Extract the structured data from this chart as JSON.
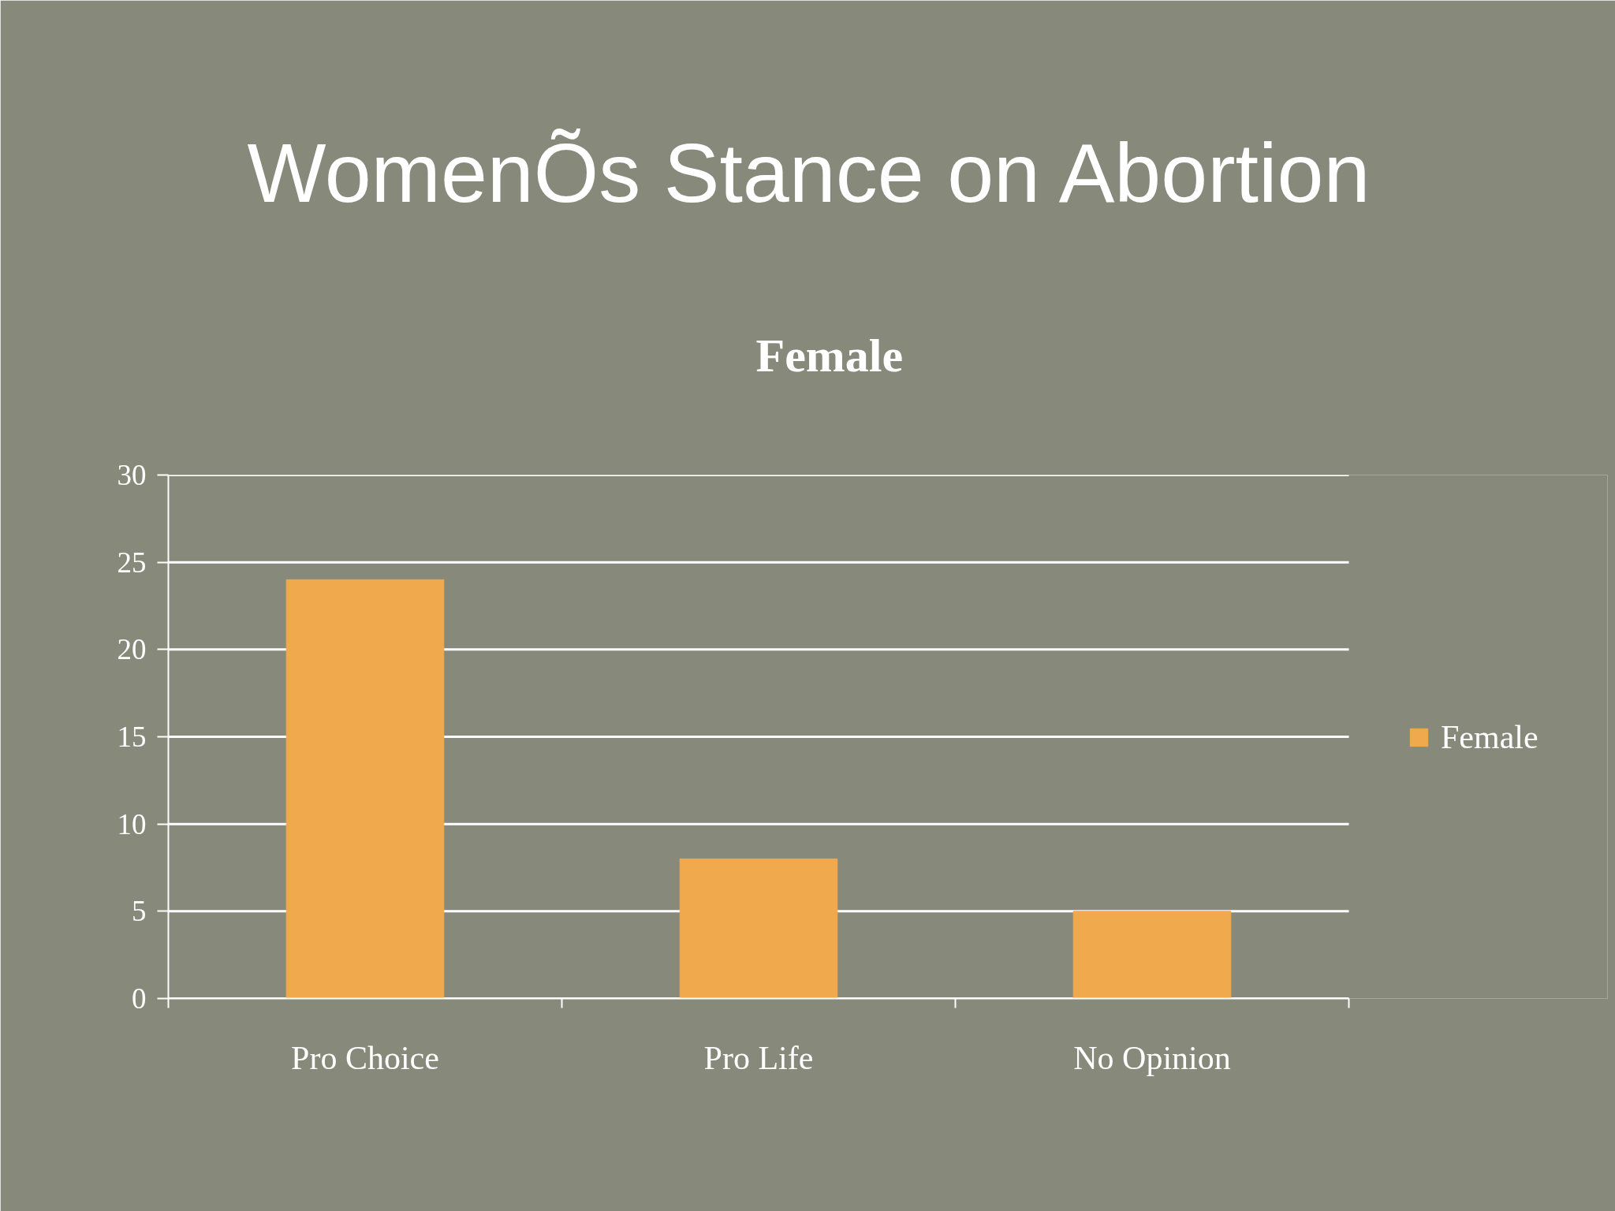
{
  "chart_data": {
    "type": "bar",
    "title": "WomenÕs Stance on Abortion",
    "subtitle": "Female",
    "categories": [
      "Pro Choice",
      "Pro Life",
      "No Opinion"
    ],
    "series": [
      {
        "name": "Female",
        "color": "#f0a94c",
        "values": [
          24,
          8,
          5
        ]
      }
    ],
    "ylim": [
      0,
      30
    ],
    "yticks": [
      0,
      5,
      10,
      15,
      20,
      25,
      30
    ],
    "grid": "y",
    "legend": "right"
  }
}
